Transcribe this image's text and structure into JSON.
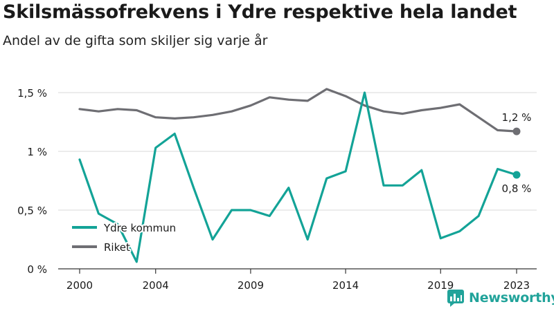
{
  "brand": {
    "name": "Newsworthy"
  },
  "colors": {
    "ydre": "#13a397",
    "riket": "#6e6e73",
    "grid": "#d9d9d9",
    "axis": "#333333",
    "text": "#1a1a1a"
  },
  "chart_data": {
    "type": "line",
    "title": "Skilsmässofrekvens i Ydre respektive hela landet",
    "subtitle": "Andel av de gifta som skiljer sig varje år",
    "x": [
      2000,
      2001,
      2002,
      2003,
      2004,
      2005,
      2006,
      2007,
      2008,
      2009,
      2010,
      2011,
      2012,
      2013,
      2014,
      2015,
      2016,
      2017,
      2018,
      2019,
      2020,
      2021,
      2022,
      2023
    ],
    "x_ticks": [
      2000,
      2004,
      2009,
      2014,
      2019,
      2023
    ],
    "y_ticks": [
      {
        "value": 0,
        "label": "0 %"
      },
      {
        "value": 0.5,
        "label": "0,5 %"
      },
      {
        "value": 1.0,
        "label": "1 %"
      },
      {
        "value": 1.5,
        "label": "1,5 %"
      }
    ],
    "ylim": [
      0,
      1.5
    ],
    "grid": true,
    "legend": "bottom-left",
    "series": [
      {
        "name": "Ydre kommun",
        "color": "#13a397",
        "values": [
          0.93,
          0.47,
          0.38,
          0.06,
          1.03,
          1.15,
          0.69,
          0.25,
          0.5,
          0.5,
          0.45,
          0.69,
          0.25,
          0.77,
          0.83,
          1.5,
          0.71,
          0.71,
          0.84,
          0.26,
          0.32,
          0.45,
          0.85,
          0.8
        ],
        "end_label": "0,8 %"
      },
      {
        "name": "Riket",
        "color": "#6e6e73",
        "values": [
          1.36,
          1.34,
          1.36,
          1.35,
          1.29,
          1.28,
          1.29,
          1.31,
          1.34,
          1.39,
          1.46,
          1.44,
          1.43,
          1.53,
          1.47,
          1.39,
          1.34,
          1.32,
          1.35,
          1.37,
          1.4,
          1.29,
          1.18,
          1.17
        ],
        "end_label": "1,2 %"
      }
    ]
  }
}
